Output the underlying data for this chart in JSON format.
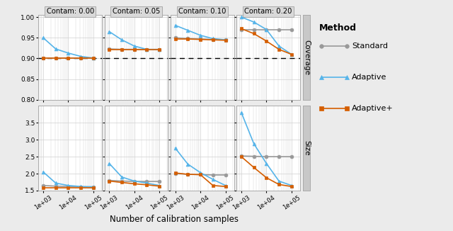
{
  "contam_labels": [
    "Contam: 0.00",
    "Contam: 0.05",
    "Contam: 0.10",
    "Contam: 0.20"
  ],
  "x_values": [
    1000,
    3162,
    10000,
    31623,
    100000
  ],
  "methods": [
    "Standard",
    "Adaptive",
    "Adaptive+"
  ],
  "colors": {
    "Standard": "#999999",
    "Adaptive": "#56B4E9",
    "Adaptive+": "#D55E00"
  },
  "markers": {
    "Standard": "o",
    "Adaptive": "^",
    "Adaptive+": "s"
  },
  "markersize": 3.5,
  "linewidth": 1.2,
  "coverage": {
    "0.00": {
      "Standard": [
        0.9,
        0.9,
        0.9,
        0.9,
        0.9
      ],
      "Adaptive": [
        0.95,
        0.923,
        0.913,
        0.905,
        0.901
      ],
      "Adaptive+": [
        0.9,
        0.9,
        0.9,
        0.9,
        0.9
      ]
    },
    "0.05": {
      "Standard": [
        0.923,
        0.922,
        0.922,
        0.922,
        0.922
      ],
      "Adaptive": [
        0.965,
        0.945,
        0.93,
        0.922,
        0.921
      ],
      "Adaptive+": [
        0.922,
        0.922,
        0.922,
        0.922,
        0.922
      ]
    },
    "0.10": {
      "Standard": [
        0.95,
        0.948,
        0.947,
        0.946,
        0.945
      ],
      "Adaptive": [
        0.98,
        0.968,
        0.956,
        0.948,
        0.945
      ],
      "Adaptive+": [
        0.947,
        0.947,
        0.946,
        0.945,
        0.944
      ]
    },
    "0.20": {
      "Standard": [
        0.97,
        0.97,
        0.97,
        0.97,
        0.97
      ],
      "Adaptive": [
        1.0,
        0.988,
        0.97,
        0.93,
        0.91
      ],
      "Adaptive+": [
        0.972,
        0.96,
        0.942,
        0.922,
        0.91
      ]
    }
  },
  "size": {
    "0.00": {
      "Standard": [
        1.65,
        1.63,
        1.62,
        1.61,
        1.61
      ],
      "Adaptive": [
        2.05,
        1.72,
        1.65,
        1.62,
        1.61
      ],
      "Adaptive+": [
        1.58,
        1.58,
        1.58,
        1.58,
        1.58
      ]
    },
    "0.05": {
      "Standard": [
        1.8,
        1.78,
        1.77,
        1.77,
        1.77
      ],
      "Adaptive": [
        2.3,
        1.9,
        1.78,
        1.72,
        1.65
      ],
      "Adaptive+": [
        1.78,
        1.74,
        1.7,
        1.67,
        1.63
      ]
    },
    "0.10": {
      "Standard": [
        2.0,
        1.98,
        1.97,
        1.96,
        1.96
      ],
      "Adaptive": [
        2.75,
        2.28,
        2.03,
        1.83,
        1.65
      ],
      "Adaptive+": [
        2.02,
        1.98,
        1.97,
        1.65,
        1.62
      ]
    },
    "0.20": {
      "Standard": [
        2.52,
        2.51,
        2.5,
        2.5,
        2.5
      ],
      "Adaptive": [
        3.8,
        2.88,
        2.3,
        1.78,
        1.65
      ],
      "Adaptive+": [
        2.5,
        2.18,
        1.88,
        1.68,
        1.62
      ]
    }
  },
  "coverage_ylim": [
    0.8,
    1.005
  ],
  "coverage_yticks": [
    0.8,
    0.85,
    0.9,
    0.95,
    1.0
  ],
  "coverage_yticklabels": [
    "0.80",
    "0.85",
    "0.90",
    "0.95",
    "1.00"
  ],
  "size_ylim": [
    1.5,
    4.0
  ],
  "size_yticks": [
    1.5,
    2.0,
    2.5,
    3.0,
    3.5
  ],
  "size_yticklabels": [
    "1.5",
    "2.0",
    "2.5",
    "3.0",
    "3.5"
  ],
  "dashed_line_y": 0.9,
  "xlabel": "Number of calibration samples",
  "bg_color": "#ebebeb",
  "panel_bg": "#ffffff",
  "strip_bg": "#c8c8c8",
  "header_bg": "#d9d9d9",
  "grid_color": "#d0d0d0",
  "legend_title": "Method",
  "legend_items": [
    "Standard",
    "Adaptive",
    "Adaptive+"
  ]
}
